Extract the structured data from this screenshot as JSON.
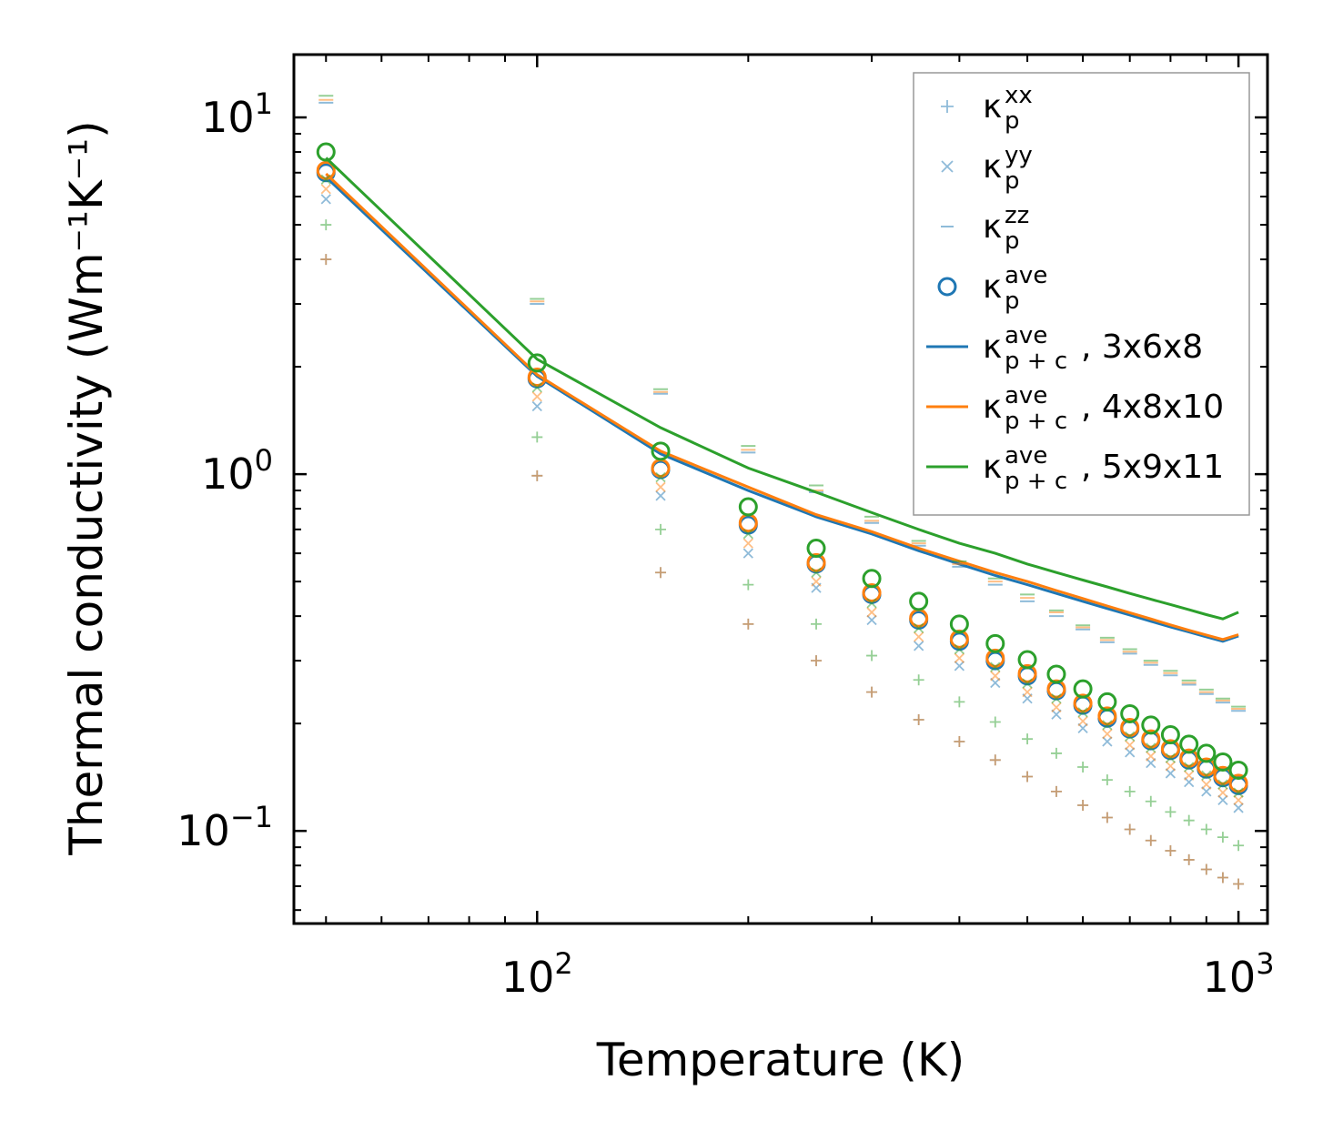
{
  "chart_data": {
    "type": "scatter",
    "xscale": "log",
    "yscale": "log",
    "xlim": [
      45,
      1100
    ],
    "ylim": [
      0.055,
      15
    ],
    "xlabel": "Temperature (K)",
    "ylabel": "Thermal conductivity (Wm⁻¹K⁻¹)",
    "xticks": [
      {
        "value": 100,
        "base": "10",
        "exp": "2"
      },
      {
        "value": 1000,
        "base": "10",
        "exp": "3"
      }
    ],
    "yticks": [
      {
        "value": 10,
        "base": "10",
        "exp": "1"
      },
      {
        "value": 1,
        "base": "10",
        "exp": "0"
      },
      {
        "value": 0.1,
        "base": "10",
        "exp": "−1"
      }
    ],
    "x": [
      50,
      100,
      150,
      200,
      250,
      300,
      350,
      400,
      450,
      500,
      550,
      600,
      650,
      700,
      750,
      800,
      850,
      900,
      950,
      1000
    ],
    "meshes": [
      {
        "name": "3x6x8",
        "color": "#1f77b4",
        "kxx": [
          4.0,
          0.99,
          0.53,
          0.38,
          0.3,
          0.245,
          0.205,
          0.178,
          0.158,
          0.142,
          0.129,
          0.118,
          0.109,
          0.101,
          0.094,
          0.088,
          0.083,
          0.078,
          0.074,
          0.071
        ],
        "kyy": [
          5.9,
          1.55,
          0.87,
          0.6,
          0.48,
          0.39,
          0.33,
          0.29,
          0.26,
          0.235,
          0.212,
          0.194,
          0.178,
          0.166,
          0.155,
          0.145,
          0.137,
          0.129,
          0.122,
          0.116
        ],
        "kzz": [
          11.0,
          3.0,
          1.68,
          1.15,
          0.89,
          0.73,
          0.63,
          0.55,
          0.49,
          0.44,
          0.4,
          0.367,
          0.338,
          0.314,
          0.292,
          0.273,
          0.257,
          0.242,
          0.229,
          0.217
        ],
        "kave": [
          7.0,
          1.85,
          1.03,
          0.72,
          0.56,
          0.46,
          0.39,
          0.34,
          0.3,
          0.272,
          0.247,
          0.225,
          0.207,
          0.193,
          0.179,
          0.168,
          0.158,
          0.149,
          0.141,
          0.134
        ],
        "kpc": [
          6.8,
          1.88,
          1.14,
          0.9,
          0.76,
          0.68,
          0.61,
          0.56,
          0.52,
          0.49,
          0.463,
          0.44,
          0.42,
          0.403,
          0.387,
          0.373,
          0.361,
          0.35,
          0.34,
          0.352
        ]
      },
      {
        "name": "4x8x10",
        "color": "#ff7f0e",
        "kxx": [
          4.0,
          0.99,
          0.53,
          0.38,
          0.3,
          0.245,
          0.205,
          0.178,
          0.158,
          0.142,
          0.129,
          0.118,
          0.109,
          0.101,
          0.094,
          0.088,
          0.083,
          0.078,
          0.074,
          0.071
        ],
        "kyy": [
          6.3,
          1.65,
          0.92,
          0.64,
          0.5,
          0.41,
          0.35,
          0.305,
          0.272,
          0.245,
          0.222,
          0.203,
          0.187,
          0.174,
          0.162,
          0.152,
          0.143,
          0.135,
          0.128,
          0.122
        ],
        "kzz": [
          11.2,
          3.05,
          1.7,
          1.17,
          0.9,
          0.74,
          0.64,
          0.56,
          0.5,
          0.45,
          0.41,
          0.372,
          0.343,
          0.318,
          0.296,
          0.277,
          0.26,
          0.245,
          0.232,
          0.22
        ],
        "kave": [
          7.1,
          1.87,
          1.04,
          0.73,
          0.565,
          0.465,
          0.395,
          0.345,
          0.305,
          0.276,
          0.25,
          0.228,
          0.21,
          0.195,
          0.181,
          0.17,
          0.16,
          0.151,
          0.143,
          0.136
        ],
        "kpc": [
          6.95,
          1.9,
          1.16,
          0.92,
          0.77,
          0.69,
          0.62,
          0.57,
          0.53,
          0.5,
          0.472,
          0.448,
          0.427,
          0.409,
          0.393,
          0.378,
          0.365,
          0.354,
          0.344,
          0.355
        ]
      },
      {
        "name": "5x9x11",
        "color": "#2ca02c",
        "kxx": [
          5.0,
          1.27,
          0.7,
          0.49,
          0.38,
          0.31,
          0.265,
          0.23,
          0.202,
          0.181,
          0.165,
          0.151,
          0.139,
          0.129,
          0.121,
          0.113,
          0.107,
          0.101,
          0.096,
          0.091
        ],
        "kyy": [
          6.7,
          1.75,
          0.98,
          0.68,
          0.53,
          0.435,
          0.37,
          0.323,
          0.288,
          0.259,
          0.235,
          0.215,
          0.198,
          0.184,
          0.171,
          0.16,
          0.151,
          0.143,
          0.135,
          0.128
        ],
        "kzz": [
          11.5,
          3.1,
          1.73,
          1.2,
          0.93,
          0.76,
          0.65,
          0.57,
          0.51,
          0.46,
          0.415,
          0.377,
          0.348,
          0.323,
          0.3,
          0.281,
          0.264,
          0.249,
          0.235,
          0.223
        ],
        "kave": [
          8.0,
          2.05,
          1.16,
          0.81,
          0.62,
          0.51,
          0.44,
          0.38,
          0.335,
          0.302,
          0.275,
          0.25,
          0.23,
          0.213,
          0.198,
          0.186,
          0.175,
          0.165,
          0.156,
          0.148
        ],
        "kpc": [
          7.7,
          2.1,
          1.35,
          1.04,
          0.89,
          0.78,
          0.7,
          0.64,
          0.6,
          0.56,
          0.53,
          0.505,
          0.483,
          0.463,
          0.446,
          0.431,
          0.417,
          0.404,
          0.393,
          0.41
        ]
      }
    ],
    "legend": {
      "location": "upper right",
      "items": [
        {
          "marker": "plus",
          "sym": "κ",
          "sub": "p",
          "sup": "xx",
          "suffix": ""
        },
        {
          "marker": "cross",
          "sym": "κ",
          "sub": "p",
          "sup": "yy",
          "suffix": ""
        },
        {
          "marker": "dash",
          "sym": "κ",
          "sub": "p",
          "sup": "zz",
          "suffix": ""
        },
        {
          "marker": "circle",
          "sym": "κ",
          "sub": "p",
          "sup": "ave",
          "suffix": ""
        },
        {
          "marker": "line",
          "sym": "κ",
          "sub": "p + c",
          "sup": "ave",
          "suffix": ", 3x6x8"
        },
        {
          "marker": "line",
          "sym": "κ",
          "sub": "p + c",
          "sup": "ave",
          "suffix": ", 4x8x10"
        },
        {
          "marker": "line",
          "sym": "κ",
          "sub": "p + c",
          "sup": "ave",
          "suffix": ", 5x9x11"
        }
      ]
    }
  }
}
